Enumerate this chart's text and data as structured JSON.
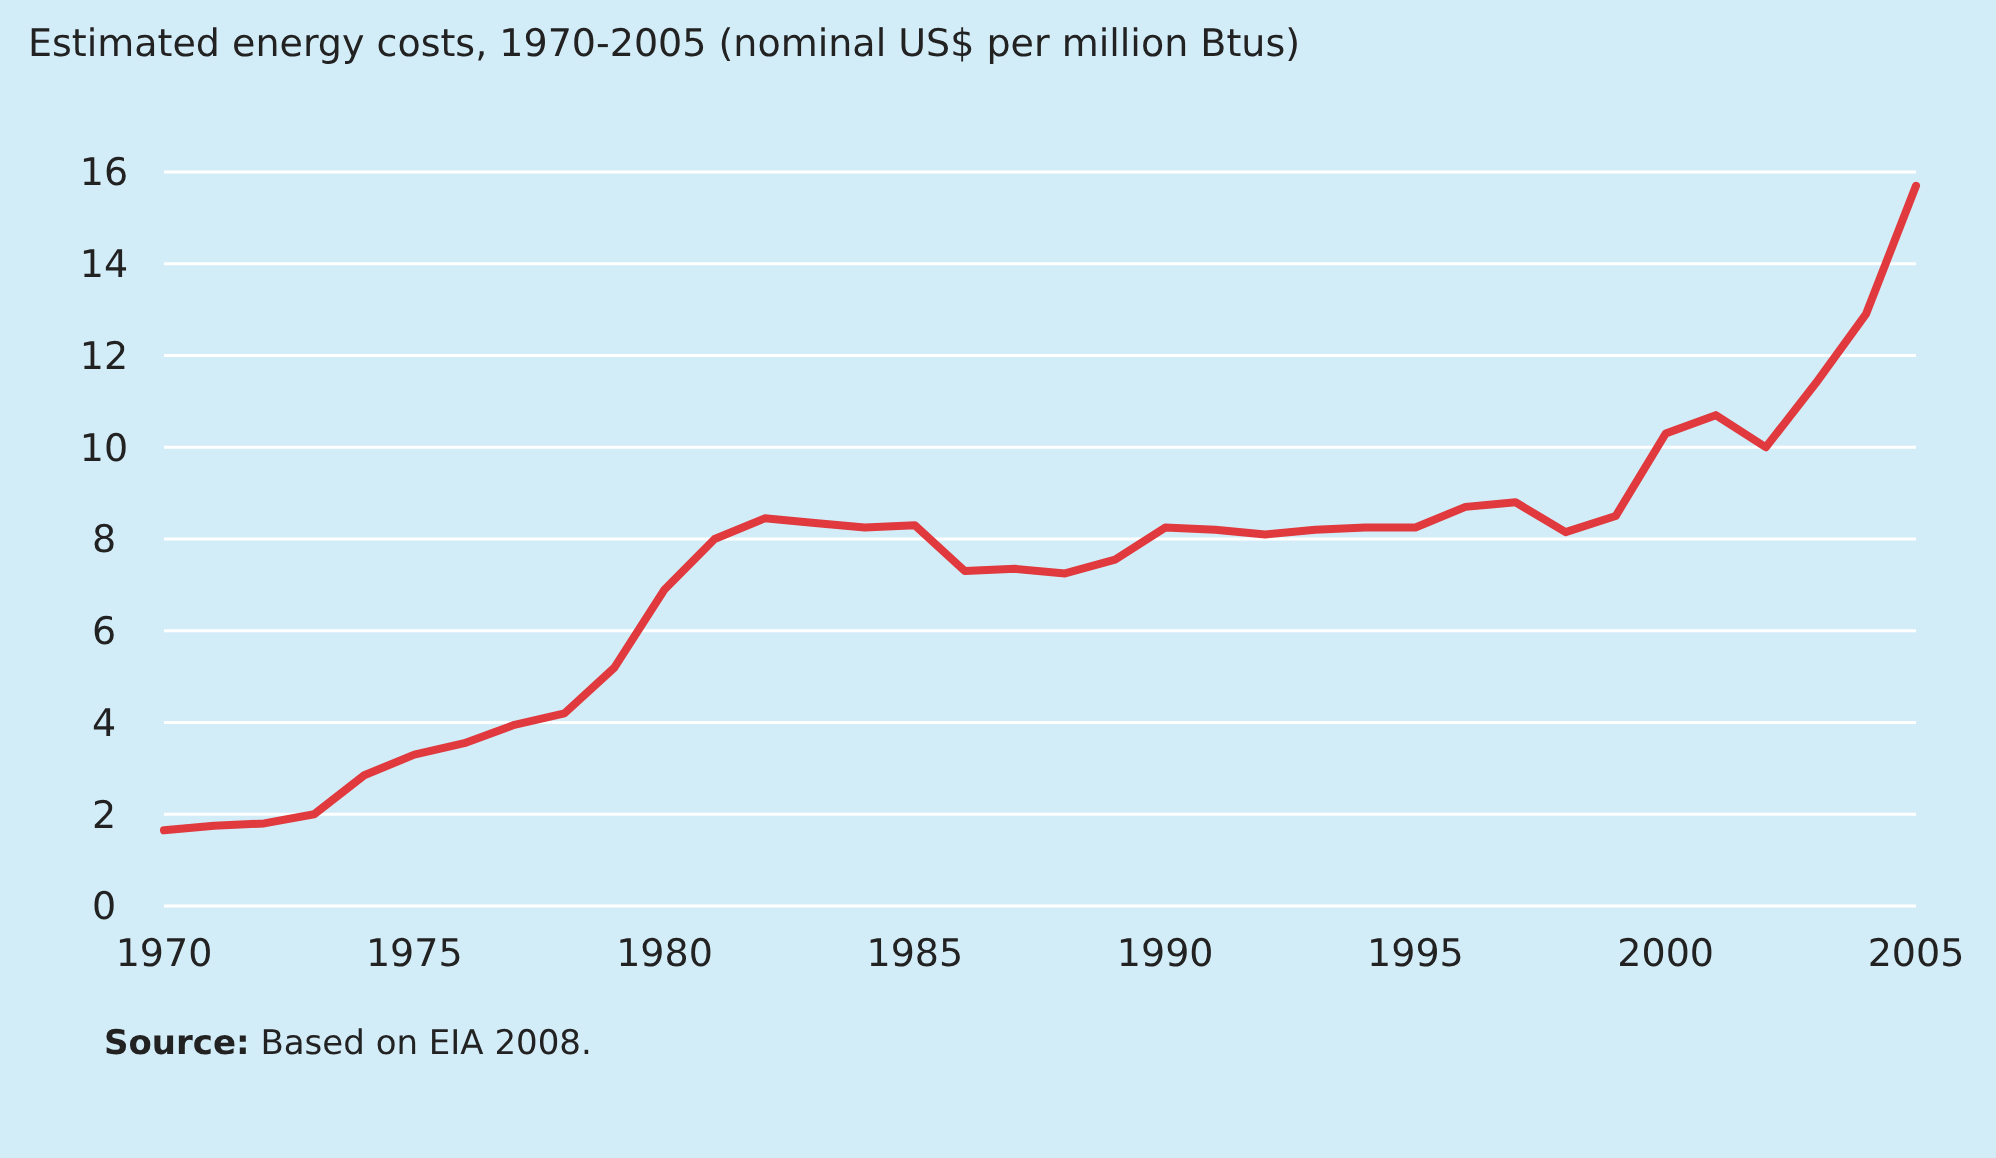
{
  "chart_data": {
    "type": "line",
    "title": "Estimated energy costs, 1970-2005 (nominal US$ per million Btus)",
    "x": [
      1970,
      1971,
      1972,
      1973,
      1974,
      1975,
      1976,
      1977,
      1978,
      1979,
      1980,
      1981,
      1982,
      1983,
      1984,
      1985,
      1986,
      1987,
      1988,
      1989,
      1990,
      1991,
      1992,
      1993,
      1994,
      1995,
      1996,
      1997,
      1998,
      1999,
      2000,
      2001,
      2002,
      2003,
      2004,
      2005
    ],
    "series": [
      {
        "color": "#e03a3e",
        "values": [
          1.65,
          1.75,
          1.8,
          2.0,
          2.85,
          3.3,
          3.55,
          3.95,
          4.2,
          5.2,
          6.9,
          8.0,
          8.45,
          8.35,
          8.25,
          8.3,
          7.3,
          7.35,
          7.25,
          7.55,
          8.25,
          8.2,
          8.1,
          8.2,
          8.25,
          8.25,
          8.7,
          8.8,
          8.15,
          8.5,
          10.3,
          10.7,
          10.0,
          11.4,
          12.9,
          15.7
        ]
      }
    ],
    "xlim": [
      1970,
      2005
    ],
    "xticks": [
      1970,
      1975,
      1980,
      1985,
      1990,
      1995,
      2000,
      2005
    ],
    "ylim": [
      0,
      16
    ],
    "yticks": [
      0,
      2,
      4,
      6,
      8,
      10,
      12,
      14,
      16
    ],
    "grid": "y",
    "marker": "none",
    "line_style": "solid",
    "annotations": [
      "Source: Based on EIA 2008."
    ]
  }
}
